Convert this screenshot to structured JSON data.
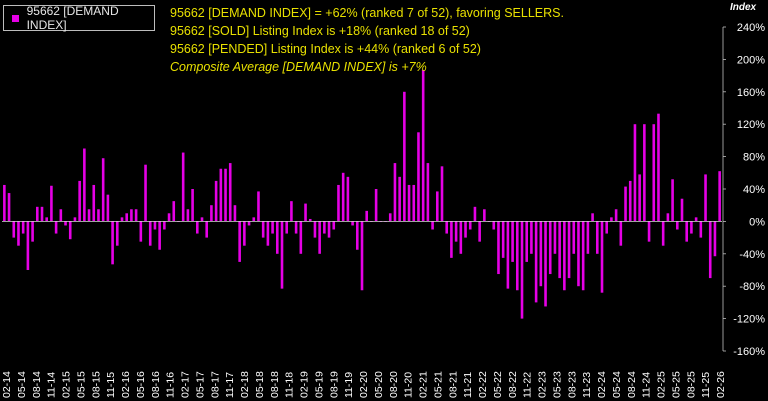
{
  "legend": {
    "label": "95662 [DEMAND INDEX]"
  },
  "notes": {
    "line1": "95662 [DEMAND INDEX] = +62% (ranked 7 of 52), favoring SELLERS.",
    "line2": "95662 [SOLD] Listing Index is +18% (ranked 18 of 52)",
    "line3": "95662 [PENDED] Listing Index is +44% (ranked 6 of 52)",
    "line4": "Composite Average [DEMAND INDEX] is +7%"
  },
  "footer_text": "",
  "chart_data": {
    "type": "bar",
    "ylabel": "Index",
    "ylim": [
      -160,
      240
    ],
    "yticks": [
      "240%",
      "200%",
      "160%",
      "120%",
      "80%",
      "40%",
      "0%",
      "-40%",
      "-80%",
      "-120%",
      "-160%"
    ],
    "xtick_labels": [
      "02-14",
      "05-14",
      "08-14",
      "11-14",
      "02-15",
      "05-15",
      "08-15",
      "11-15",
      "02-16",
      "05-16",
      "08-16",
      "11-16",
      "02-17",
      "05-17",
      "08-17",
      "11-17",
      "02-18",
      "05-18",
      "08-18",
      "11-18",
      "02-19",
      "05-19",
      "08-19",
      "11-19",
      "02-20",
      "05-20",
      "08-20",
      "11-20",
      "02-21",
      "05-21",
      "08-21",
      "11-21",
      "02-22",
      "05-22",
      "08-22",
      "11-22",
      "02-23",
      "05-23",
      "08-23",
      "11-23",
      "02-24",
      "05-24",
      "08-24",
      "11-24",
      "02-25",
      "05-25",
      "08-25",
      "11-25",
      "02-26"
    ],
    "grid": false,
    "bar_color": "#e600e6",
    "legend_position": "top-left",
    "values": [
      45,
      35,
      -20,
      -30,
      -15,
      -60,
      -25,
      18,
      18,
      5,
      44,
      -15,
      15,
      -5,
      -22,
      5,
      50,
      90,
      15,
      45,
      15,
      78,
      33,
      -53,
      -30,
      5,
      10,
      15,
      15,
      -25,
      70,
      -30,
      -10,
      -35,
      -10,
      10,
      25,
      0,
      85,
      15,
      40,
      -15,
      5,
      -20,
      20,
      50,
      65,
      65,
      72,
      20,
      -50,
      -30,
      -5,
      5,
      37,
      -20,
      -30,
      -15,
      -40,
      -83,
      -15,
      25,
      -15,
      -40,
      22,
      3,
      -20,
      -40,
      -15,
      -20,
      -10,
      45,
      60,
      55,
      -5,
      -35,
      -85,
      13,
      0,
      40,
      0,
      0,
      10,
      72,
      55,
      160,
      45,
      45,
      110,
      187,
      72,
      -10,
      37,
      68,
      -15,
      -45,
      -25,
      -40,
      -20,
      -10,
      18,
      -25,
      15,
      0,
      -10,
      -65,
      -45,
      -83,
      -50,
      -85,
      -120,
      -50,
      -40,
      -100,
      -80,
      -105,
      -65,
      -40,
      -70,
      -85,
      -70,
      -40,
      -80,
      -85,
      -40,
      10,
      -40,
      -88,
      -15,
      5,
      15,
      -30,
      43,
      50,
      120,
      58,
      120,
      -25,
      120,
      133,
      -30,
      10,
      52,
      -10,
      28,
      -25,
      -15,
      5,
      -20,
      58,
      -70,
      -43,
      62
    ]
  }
}
